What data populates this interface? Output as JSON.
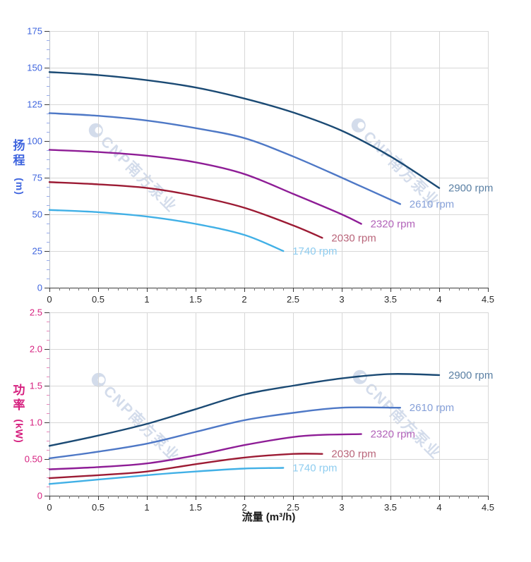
{
  "watermark": {
    "text": "CNP南方泵业",
    "logo_icon": "cnp-swirl-logo-icon",
    "color": "#b5c3dd"
  },
  "xlabel": "流量 (m³/h)",
  "chart_data": [
    {
      "type": "line",
      "title": "",
      "ylabel": "扬程 (m)",
      "ylabel_chars": [
        "扬",
        "程"
      ],
      "ylabel_unit": "(m)",
      "xlabel": "流量 (m³/h)",
      "axis_color": "#3e64de",
      "xlim": [
        0,
        4.5
      ],
      "ylim": [
        0,
        175
      ],
      "x_ticks": [
        "0",
        "0.5",
        "1",
        "1.5",
        "2",
        "2.5",
        "3",
        "3.5",
        "4",
        "4.5"
      ],
      "y_ticks": [
        "0",
        "25",
        "50",
        "75",
        "100",
        "125",
        "150",
        "175"
      ],
      "grid": true,
      "legend_position": "curve-end",
      "series": [
        {
          "name": "2900 rpm",
          "color": "#1b4a74",
          "label_color": "#5b80a4",
          "x": [
            0,
            0.5,
            1,
            1.5,
            2,
            2.5,
            3,
            3.5,
            4
          ],
          "y": [
            147,
            145,
            141.5,
            136.5,
            129,
            119.5,
            107,
            89.5,
            68
          ]
        },
        {
          "name": "2610 rpm",
          "color": "#4e78c6",
          "label_color": "#86a0d8",
          "x": [
            0,
            0.5,
            1,
            1.5,
            2,
            2.5,
            3,
            3.6
          ],
          "y": [
            119,
            117.2,
            114,
            108.8,
            102,
            89.5,
            75,
            57
          ]
        },
        {
          "name": "2320 rpm",
          "color": "#8e1d96",
          "label_color": "#b263b9",
          "x": [
            0,
            0.5,
            1,
            1.5,
            2,
            2.5,
            3,
            3.2
          ],
          "y": [
            94,
            92.5,
            90,
            85.5,
            77.5,
            64,
            50,
            43.5
          ]
        },
        {
          "name": "2030 rpm",
          "color": "#9c1b34",
          "label_color": "#b9657a",
          "x": [
            0,
            0.5,
            1,
            1.5,
            2,
            2.5,
            2.8
          ],
          "y": [
            72,
            70.5,
            68,
            62.5,
            54.5,
            42.5,
            34
          ]
        },
        {
          "name": "1740 rpm",
          "color": "#41b0e6",
          "label_color": "#8fcdf0",
          "x": [
            0,
            0.5,
            1,
            1.5,
            2,
            2.4
          ],
          "y": [
            53,
            51.5,
            48.5,
            43.5,
            36,
            25
          ]
        }
      ]
    },
    {
      "type": "line",
      "title": "",
      "ylabel": "功率 (kW)",
      "ylabel_chars": [
        "功",
        "率"
      ],
      "ylabel_unit": "(kW)",
      "xlabel": "流量 (m³/h)",
      "axis_color": "#d6207f",
      "xlim": [
        0,
        4.5
      ],
      "ylim": [
        0,
        2.5
      ],
      "x_ticks": [
        "0",
        "0.5",
        "1",
        "1.5",
        "2",
        "2.5",
        "3",
        "3.5",
        "4",
        "4.5"
      ],
      "y_ticks": [
        "0",
        "0.50",
        "1.0",
        "1.5",
        "2.0",
        "2.5"
      ],
      "grid": true,
      "legend_position": "curve-end",
      "series": [
        {
          "name": "2900 rpm",
          "color": "#1b4a74",
          "label_color": "#5b80a4",
          "x": [
            0,
            0.5,
            1,
            1.5,
            2,
            2.5,
            3,
            3.5,
            4
          ],
          "y": [
            0.68,
            0.82,
            0.98,
            1.18,
            1.38,
            1.5,
            1.6,
            1.66,
            1.645
          ]
        },
        {
          "name": "2610 rpm",
          "color": "#4e78c6",
          "label_color": "#86a0d8",
          "x": [
            0,
            0.5,
            1,
            1.5,
            2,
            2.5,
            3,
            3.6
          ],
          "y": [
            0.51,
            0.6,
            0.71,
            0.87,
            1.03,
            1.13,
            1.2,
            1.2
          ]
        },
        {
          "name": "2320 rpm",
          "color": "#8e1d96",
          "label_color": "#b263b9",
          "x": [
            0,
            0.5,
            1,
            1.5,
            2,
            2.5,
            2.8,
            3.2
          ],
          "y": [
            0.36,
            0.39,
            0.44,
            0.55,
            0.69,
            0.8,
            0.83,
            0.84
          ]
        },
        {
          "name": "2030 rpm",
          "color": "#9c1b34",
          "label_color": "#b9657a",
          "x": [
            0,
            0.5,
            1,
            1.5,
            2,
            2.5,
            2.8
          ],
          "y": [
            0.24,
            0.28,
            0.33,
            0.43,
            0.52,
            0.57,
            0.57
          ]
        },
        {
          "name": "1740 rpm",
          "color": "#41b0e6",
          "label_color": "#8fcdf0",
          "x": [
            0,
            0.5,
            1,
            1.5,
            2,
            2.4
          ],
          "y": [
            0.16,
            0.22,
            0.28,
            0.33,
            0.37,
            0.38
          ]
        }
      ]
    }
  ]
}
